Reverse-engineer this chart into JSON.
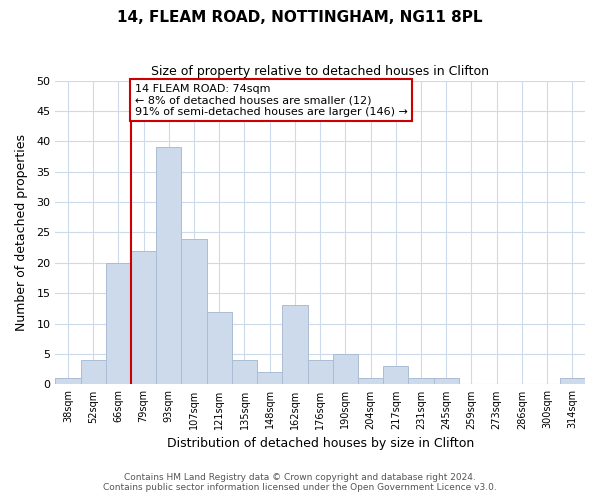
{
  "title": "14, FLEAM ROAD, NOTTINGHAM, NG11 8PL",
  "subtitle": "Size of property relative to detached houses in Clifton",
  "xlabel": "Distribution of detached houses by size in Clifton",
  "ylabel": "Number of detached properties",
  "bin_labels": [
    "38sqm",
    "52sqm",
    "66sqm",
    "79sqm",
    "93sqm",
    "107sqm",
    "121sqm",
    "135sqm",
    "148sqm",
    "162sqm",
    "176sqm",
    "190sqm",
    "204sqm",
    "217sqm",
    "231sqm",
    "245sqm",
    "259sqm",
    "273sqm",
    "286sqm",
    "300sqm",
    "314sqm"
  ],
  "bar_values": [
    1,
    4,
    20,
    22,
    39,
    24,
    12,
    4,
    2,
    13,
    4,
    5,
    1,
    3,
    1,
    1,
    0,
    0,
    0,
    0,
    1
  ],
  "bar_color": "#ccdaeb",
  "bar_edgecolor": "#aabdd4",
  "vline_x_idx": 3,
  "vline_color": "#cc0000",
  "annotation_line1": "14 FLEAM ROAD: 74sqm",
  "annotation_line2": "← 8% of detached houses are smaller (12)",
  "annotation_line3": "91% of semi-detached houses are larger (146) →",
  "annotation_box_edgecolor": "#cc0000",
  "ylim": [
    0,
    50
  ],
  "yticks": [
    0,
    5,
    10,
    15,
    20,
    25,
    30,
    35,
    40,
    45,
    50
  ],
  "footer1": "Contains HM Land Registry data © Crown copyright and database right 2024.",
  "footer2": "Contains public sector information licensed under the Open Government Licence v3.0.",
  "bg_color": "#ffffff",
  "grid_color": "#ccdaeb"
}
